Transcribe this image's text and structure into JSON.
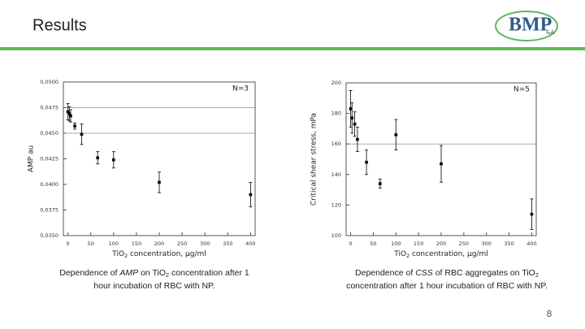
{
  "slide": {
    "title": "Results",
    "logo": "BMP",
    "logo_suffix": "&A",
    "page_number": "8",
    "captions": [
      [
        [
          {
            "text": "Dependence of "
          },
          {
            "text": "AMP",
            "style": "italic"
          },
          {
            "text": " on TiO"
          },
          {
            "text": "2",
            "style": "sub"
          },
          {
            "text": " concentration after 1"
          }
        ],
        [
          {
            "text": "hour incubation of RBC with NP."
          }
        ]
      ],
      [
        [
          {
            "text": "Dependence of "
          },
          {
            "text": "CSS",
            "style": "italic"
          },
          {
            "text": " of RBC aggregates on TiO"
          },
          {
            "text": "2",
            "style": "sub"
          }
        ],
        [
          {
            "text": "concentration after 1 hour incubation of RBC with NP."
          }
        ]
      ]
    ]
  },
  "chart_data": [
    {
      "type": "scatter",
      "annotation": "N=3",
      "x_label": [
        {
          "text": "TiO"
        },
        {
          "text": "2",
          "style": "sub"
        },
        {
          "text": " concentration, μg/ml"
        }
      ],
      "y_label": "AMP au",
      "x": [
        0,
        3,
        6,
        15,
        30,
        65,
        100,
        200,
        400
      ],
      "series": [
        {
          "color": "#000000",
          "values": [
            0.0471,
            0.0469,
            0.0467,
            0.0457,
            0.0449,
            0.0426,
            0.0424,
            0.0402,
            0.039
          ],
          "errors": [
            0.0008,
            0.0007,
            0.0006,
            0.0003,
            0.001,
            0.0006,
            0.0008,
            0.001,
            0.0012
          ]
        }
      ],
      "xlim": [
        -10,
        410
      ],
      "xticks": [
        0,
        50,
        100,
        150,
        200,
        250,
        300,
        350,
        400
      ],
      "ylim": [
        0.035,
        0.05
      ],
      "yticks": [
        {
          "value": 0.035,
          "label": "0,0350"
        },
        {
          "value": 0.0375,
          "label": "0,0375"
        },
        {
          "value": 0.04,
          "label": "0,0400"
        },
        {
          "value": 0.0425,
          "label": "0,0425"
        },
        {
          "value": 0.045,
          "label": "0,0450"
        },
        {
          "value": 0.0475,
          "label": "0,0475"
        },
        {
          "value": 0.05,
          "label": "0,0500"
        }
      ],
      "reference_lines": [
        0.0475,
        0.045
      ]
    },
    {
      "type": "scatter",
      "annotation": "N=5",
      "x_label": [
        {
          "text": "TiO"
        },
        {
          "text": "2",
          "style": "sub"
        },
        {
          "text": " concentration, μg/ml"
        }
      ],
      "y_label": "Critical shear stress, mPa",
      "x": [
        0,
        3,
        9,
        15,
        35,
        65,
        100,
        200,
        400
      ],
      "series": [
        {
          "color": "#000000",
          "values": [
            183,
            177,
            173,
            163,
            148,
            134,
            166,
            147,
            114
          ],
          "errors": [
            12,
            10,
            8,
            8,
            8,
            3,
            10,
            12,
            10
          ]
        }
      ],
      "xlim": [
        -10,
        410
      ],
      "xticks": [
        0,
        50,
        100,
        150,
        200,
        250,
        300,
        350,
        400
      ],
      "ylim": [
        100,
        200
      ],
      "yticks": [
        100,
        120,
        140,
        160,
        180,
        200
      ],
      "reference_lines": [
        160
      ]
    }
  ]
}
